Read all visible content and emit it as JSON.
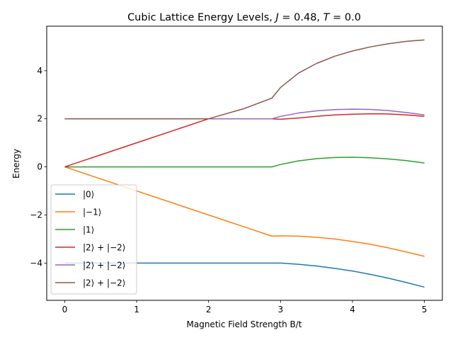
{
  "chart_data": {
    "type": "line",
    "title": "Cubic Lattice Energy Levels, J = 0.48, T = 0.0",
    "title_parts": {
      "prefix": "Cubic Lattice Energy Levels, ",
      "j_sym": "J",
      "j_val": " = 0.48, ",
      "t_sym": "T",
      "t_val": " = 0.0"
    },
    "xlabel": "Magnetic Field Strength B/t",
    "ylabel": "Energy",
    "xlim": [
      -0.25,
      5.25
    ],
    "ylim": [
      -5.55,
      5.85
    ],
    "xticks": [
      0,
      1,
      2,
      3,
      4,
      5
    ],
    "xtick_labels": [
      "0",
      "1",
      "2",
      "3",
      "4",
      "5"
    ],
    "yticks": [
      -4,
      -2,
      0,
      2,
      4
    ],
    "ytick_labels": [
      "−4",
      "−2",
      "0",
      "2",
      "4"
    ],
    "grid": false,
    "legend_position": "lower-left",
    "series": [
      {
        "name": "|0⟩",
        "color": "#1f77b4",
        "x": [
          0,
          0.5,
          1,
          1.5,
          2,
          2.5,
          2.88,
          3,
          3.25,
          3.5,
          3.75,
          4,
          4.25,
          4.5,
          4.75,
          5
        ],
        "y": [
          -4,
          -4,
          -4,
          -4,
          -4,
          -4,
          -4,
          -4.0,
          -4.05,
          -4.12,
          -4.22,
          -4.33,
          -4.47,
          -4.63,
          -4.81,
          -5.0
        ]
      },
      {
        "name": "|−1⟩",
        "color": "#ff7f0e",
        "x": [
          0,
          0.5,
          1,
          1.5,
          2,
          2.5,
          2.88,
          3,
          3.25,
          3.5,
          3.75,
          4,
          4.25,
          4.5,
          4.75,
          5
        ],
        "y": [
          0,
          -0.5,
          -1,
          -1.5,
          -2,
          -2.5,
          -2.88,
          -2.87,
          -2.88,
          -2.93,
          -3.0,
          -3.1,
          -3.22,
          -3.37,
          -3.54,
          -3.72
        ]
      },
      {
        "name": "|1⟩",
        "color": "#2ca02c",
        "x": [
          0,
          0.5,
          1,
          1.5,
          2,
          2.5,
          2.88,
          3,
          3.25,
          3.5,
          3.75,
          4,
          4.25,
          4.5,
          4.75,
          5
        ],
        "y": [
          0,
          0,
          0,
          0,
          0,
          0,
          0,
          0.1,
          0.25,
          0.34,
          0.39,
          0.4,
          0.38,
          0.33,
          0.26,
          0.16
        ]
      },
      {
        "name": "|2⟩ + |−2⟩",
        "color": "#d62728",
        "x": [
          0,
          0.5,
          1,
          1.5,
          2,
          2.5,
          2.88,
          3,
          3.25,
          3.5,
          3.75,
          4,
          4.25,
          4.5,
          4.75,
          5
        ],
        "y": [
          0,
          0.5,
          1,
          1.5,
          2,
          2.0,
          2.0,
          1.98,
          2.03,
          2.1,
          2.16,
          2.19,
          2.21,
          2.2,
          2.16,
          2.1
        ]
      },
      {
        "name": "|2⟩ + |−2⟩",
        "color": "#9467bd",
        "x": [
          0,
          0.5,
          1,
          1.5,
          2,
          2.5,
          2.88,
          3,
          3.25,
          3.5,
          3.75,
          4,
          4.25,
          4.5,
          4.75,
          5
        ],
        "y": [
          2,
          2,
          2,
          2,
          2,
          2,
          2,
          2.1,
          2.24,
          2.33,
          2.38,
          2.4,
          2.39,
          2.34,
          2.26,
          2.16
        ]
      },
      {
        "name": "|2⟩ + |−2⟩",
        "color": "#8c564b",
        "x": [
          0,
          0.5,
          1,
          1.5,
          2,
          2.5,
          2.88,
          3,
          3.25,
          3.5,
          3.75,
          4,
          4.25,
          4.5,
          4.75,
          5
        ],
        "y": [
          2,
          2,
          2,
          2,
          2,
          2.43,
          2.86,
          3.3,
          3.9,
          4.3,
          4.6,
          4.82,
          4.99,
          5.12,
          5.22,
          5.28
        ]
      }
    ]
  }
}
